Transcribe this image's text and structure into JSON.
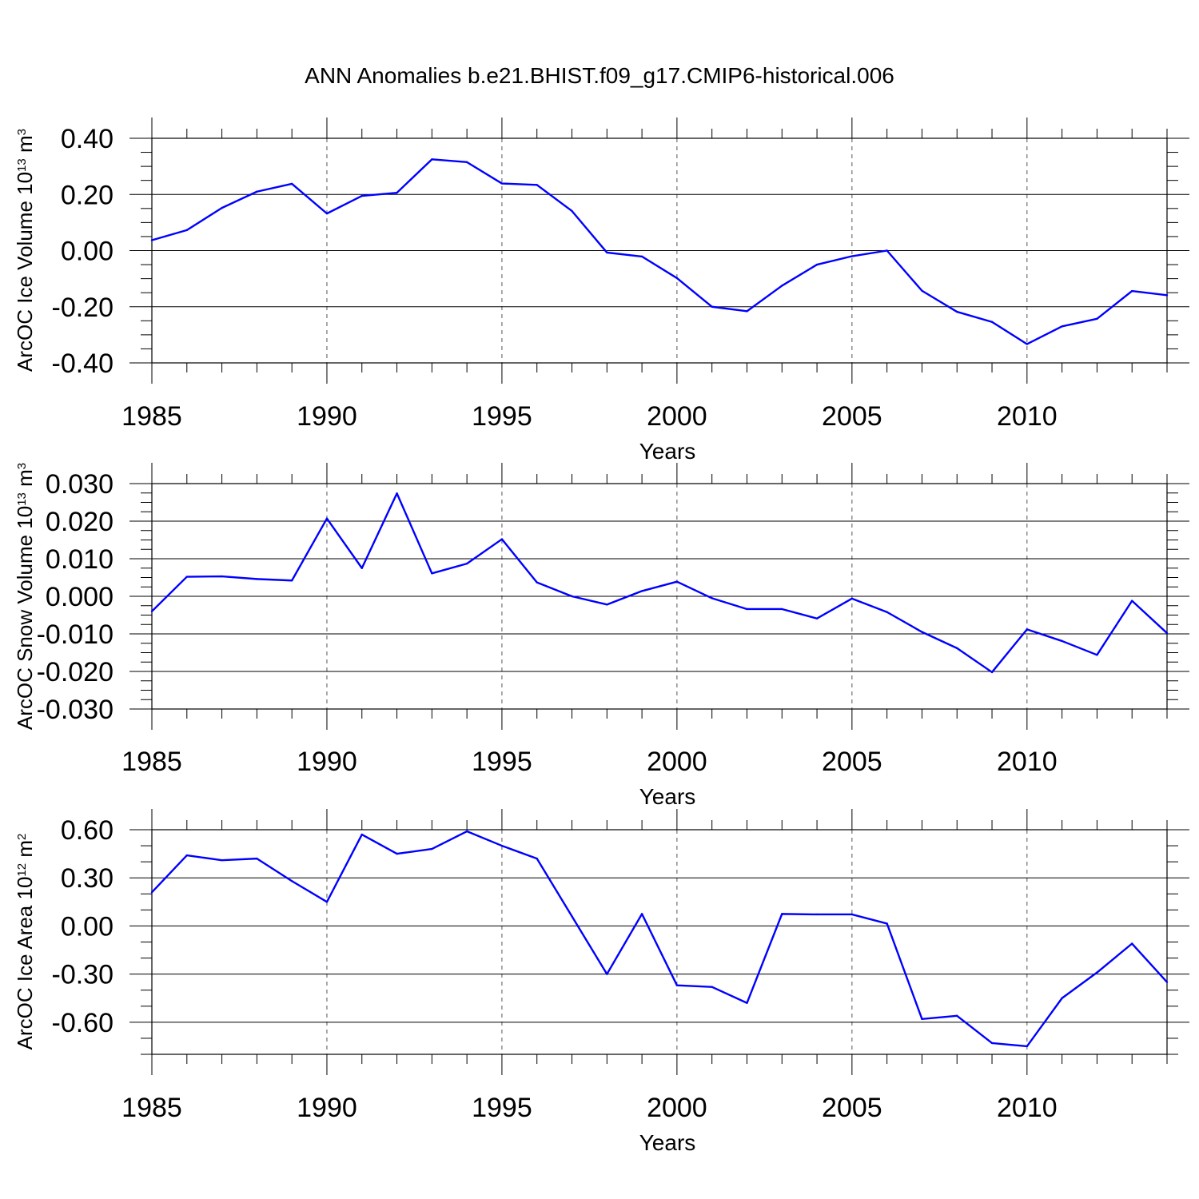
{
  "figure": {
    "title": "ANN Anomalies b.e21.BHIST.f09_g17.CMIP6-historical.006",
    "line_color": "#0000ff"
  },
  "chart_data": [
    {
      "type": "line",
      "title": "",
      "xlabel": "Years",
      "ylabel": {
        "text": "ArcOC Ice Volume 10",
        "exponent": "13",
        "unit": " m",
        "unit_exponent": "3"
      },
      "xlim": [
        1985,
        2014
      ],
      "ylim": [
        -0.4,
        0.4
      ],
      "xticks": [
        1985,
        1990,
        1995,
        2000,
        2005,
        2010
      ],
      "xtick_labels": [
        "1985",
        "1990",
        "1995",
        "2000",
        "2005",
        "2010"
      ],
      "yticks": [
        0.4,
        0.2,
        0.0,
        -0.2,
        -0.4
      ],
      "ytick_labels": [
        "0.40",
        "0.20",
        "0.00",
        "-0.20",
        "-0.40"
      ],
      "yminor_step": 0.05,
      "x_grid": "dashed",
      "x": [
        1985,
        1986,
        1987,
        1988,
        1989,
        1990,
        1991,
        1992,
        1993,
        1994,
        1995,
        1996,
        1997,
        1998,
        1999,
        2000,
        2001,
        2002,
        2003,
        2004,
        2005,
        2006,
        2007,
        2008,
        2009,
        2010,
        2011,
        2012,
        2013,
        2014
      ],
      "series": [
        {
          "values": [
            0.037,
            0.073,
            0.152,
            0.21,
            0.238,
            0.132,
            0.195,
            0.206,
            0.325,
            0.315,
            0.239,
            0.234,
            0.141,
            -0.007,
            -0.021,
            -0.098,
            -0.2,
            -0.216,
            -0.125,
            -0.05,
            -0.02,
            0.0,
            -0.143,
            -0.218,
            -0.254,
            -0.333,
            -0.27,
            -0.243,
            -0.144,
            -0.159
          ]
        }
      ]
    },
    {
      "type": "line",
      "title": "",
      "xlabel": "Years",
      "ylabel": {
        "text": "ArcOC Snow Volume 10",
        "exponent": "13",
        "unit": " m",
        "unit_exponent": "3"
      },
      "xlim": [
        1985,
        2014
      ],
      "ylim": [
        -0.03,
        0.03
      ],
      "xticks": [
        1985,
        1990,
        1995,
        2000,
        2005,
        2010
      ],
      "xtick_labels": [
        "1985",
        "1990",
        "1995",
        "2000",
        "2005",
        "2010"
      ],
      "yticks": [
        0.03,
        0.02,
        0.01,
        0.0,
        -0.01,
        -0.02,
        -0.03
      ],
      "ytick_labels": [
        "0.030",
        "0.020",
        "0.010",
        "0.000",
        "-0.010",
        "-0.020",
        "-0.030"
      ],
      "yminor_step": 0.0025,
      "x_grid": "dashed",
      "x": [
        1985,
        1986,
        1987,
        1988,
        1989,
        1990,
        1991,
        1992,
        1993,
        1994,
        1995,
        1996,
        1997,
        1998,
        1999,
        2000,
        2001,
        2002,
        2003,
        2004,
        2005,
        2006,
        2007,
        2008,
        2009,
        2010,
        2011,
        2012,
        2013,
        2014
      ],
      "series": [
        {
          "values": [
            -0.004,
            0.0052,
            0.0053,
            0.0046,
            0.0042,
            0.0207,
            0.0075,
            0.0274,
            0.0061,
            0.0087,
            0.0152,
            0.0037,
            0.0,
            -0.0022,
            0.0014,
            0.0039,
            -0.0005,
            -0.0034,
            -0.0034,
            -0.0059,
            -0.0006,
            -0.0042,
            -0.0095,
            -0.0138,
            -0.0202,
            -0.0088,
            -0.0119,
            -0.0156,
            -0.0012,
            -0.0098
          ]
        }
      ]
    },
    {
      "type": "line",
      "title": "",
      "xlabel": "Years",
      "ylabel": {
        "text": "ArcOC Ice Area 10",
        "exponent": "12",
        "unit": " m",
        "unit_exponent": "2"
      },
      "xlim": [
        1985,
        2014
      ],
      "ylim": [
        -0.8,
        0.6
      ],
      "xticks": [
        1985,
        1990,
        1995,
        2000,
        2005,
        2010
      ],
      "xtick_labels": [
        "1985",
        "1990",
        "1995",
        "2000",
        "2005",
        "2010"
      ],
      "yticks": [
        0.6,
        0.3,
        0.0,
        -0.3,
        -0.6
      ],
      "ytick_labels": [
        "0.60",
        "0.30",
        "0.00",
        "-0.30",
        "-0.60"
      ],
      "yminor_step": 0.1,
      "x_grid": "dashed",
      "x": [
        1985,
        1986,
        1987,
        1988,
        1989,
        1990,
        1991,
        1992,
        1993,
        1994,
        1995,
        1996,
        1997,
        1998,
        1999,
        2000,
        2001,
        2002,
        2003,
        2004,
        2005,
        2006,
        2007,
        2008,
        2009,
        2010,
        2011,
        2012,
        2013,
        2014
      ],
      "series": [
        {
          "values": [
            0.21,
            0.44,
            0.41,
            0.42,
            0.28,
            0.15,
            0.57,
            0.45,
            0.48,
            0.59,
            0.5,
            0.42,
            0.06,
            -0.3,
            0.075,
            -0.37,
            -0.38,
            -0.48,
            0.075,
            0.072,
            0.072,
            0.015,
            -0.58,
            -0.56,
            -0.73,
            -0.75,
            -0.45,
            -0.29,
            -0.11,
            -0.35
          ]
        }
      ]
    }
  ]
}
